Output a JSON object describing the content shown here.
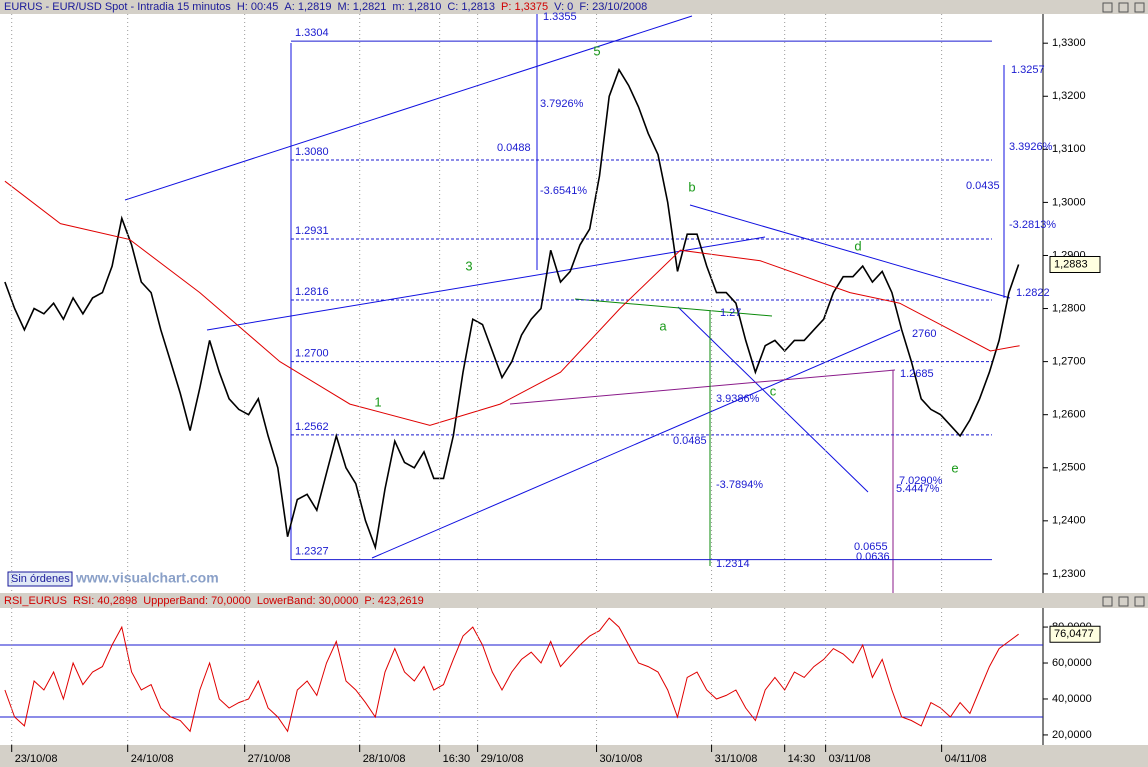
{
  "chart_data": [
    {
      "type": "line",
      "header": [
        "EURUS - EUR/USD Spot - Intradia 15 minutos",
        "H: 00:45",
        "A: 1,2819",
        "M: 1,2821",
        "m: 1,2810",
        "C: 1,2813",
        "P: 1,3375",
        "V: 0",
        "F: 23/10/2008"
      ],
      "x": [
        0,
        1,
        2,
        3,
        4,
        5,
        6,
        7,
        8,
        9,
        10,
        11,
        12,
        13,
        14,
        15,
        16,
        17,
        18,
        19,
        20,
        21,
        22,
        23,
        24,
        25,
        26,
        27,
        28,
        29,
        30,
        31,
        32,
        33,
        34,
        35,
        36,
        37,
        38,
        39,
        40,
        41,
        42,
        43,
        44,
        45,
        46,
        47,
        48,
        49,
        50,
        51,
        52,
        53,
        54,
        55,
        56,
        57,
        58,
        59,
        60,
        61,
        62,
        63,
        64,
        65,
        66,
        67,
        68,
        69,
        70,
        71,
        72,
        73,
        74,
        75,
        76,
        77,
        78,
        79,
        80,
        81,
        82,
        83,
        84,
        85,
        86,
        87,
        88,
        89,
        90,
        91,
        92,
        93,
        94,
        95,
        96,
        97,
        98,
        99,
        100,
        101,
        102,
        103,
        104
      ],
      "series": [
        {
          "color": "#000000",
          "values": [
            1.285,
            1.28,
            1.276,
            1.28,
            1.279,
            1.281,
            1.278,
            1.282,
            1.279,
            1.282,
            1.283,
            1.288,
            1.297,
            1.292,
            1.285,
            1.283,
            1.276,
            1.27,
            1.264,
            1.257,
            1.265,
            1.274,
            1.268,
            1.263,
            1.261,
            1.26,
            1.263,
            1.256,
            1.25,
            1.237,
            1.244,
            1.245,
            1.242,
            1.249,
            1.256,
            1.25,
            1.247,
            1.24,
            1.235,
            1.246,
            1.255,
            1.251,
            1.25,
            1.253,
            1.248,
            1.248,
            1.256,
            1.268,
            1.278,
            1.277,
            1.272,
            1.267,
            1.27,
            1.275,
            1.278,
            1.28,
            1.291,
            1.285,
            1.287,
            1.292,
            1.295,
            1.305,
            1.32,
            1.325,
            1.322,
            1.318,
            1.313,
            1.309,
            1.3,
            1.287,
            1.294,
            1.294,
            1.288,
            1.283,
            1.283,
            1.281,
            1.274,
            1.268,
            1.273,
            1.274,
            1.272,
            1.274,
            1.274,
            1.276,
            1.278,
            1.283,
            1.286,
            1.286,
            1.288,
            1.285,
            1.287,
            1.283,
            1.276,
            1.27,
            1.263,
            1.261,
            1.26,
            1.258,
            1.256,
            1.259,
            1.263,
            1.268,
            1.274,
            1.283,
            1.2883
          ]
        },
        {
          "color": "#e00000",
          "x": [
            0,
            5.7,
            12.8,
            20,
            28.2,
            35.4,
            43.6,
            50.8,
            57,
            63.1,
            69.3,
            77.5,
            86.7,
            91.8,
            97,
            101.1,
            104.1
          ],
          "values": [
            1.304,
            1.296,
            1.293,
            1.283,
            1.27,
            1.262,
            1.258,
            1.262,
            1.268,
            1.28,
            1.291,
            1.289,
            1.283,
            1.281,
            1.276,
            1.272,
            1.273
          ]
        }
      ],
      "xlim": [
        -0.5,
        106.5
      ],
      "xticks": [
        {
          "value": 0.7,
          "label": "23/10/08"
        },
        {
          "value": 12.6,
          "label": "24/10/08"
        },
        {
          "value": 24.6,
          "label": "27/10/08"
        },
        {
          "value": 36.4,
          "label": "28/10/08"
        },
        {
          "value": 44.6,
          "label": "16:30"
        },
        {
          "value": 48.5,
          "label": "29/10/08"
        },
        {
          "value": 60.7,
          "label": "30/10/08"
        },
        {
          "value": 72.5,
          "label": "31/10/08"
        },
        {
          "value": 80,
          "label": "14:30"
        },
        {
          "value": 84.2,
          "label": "03/11/08"
        },
        {
          "value": 96.1,
          "label": "04/11/08"
        }
      ],
      "ylim": [
        1.2264,
        1.3355
      ],
      "yticks": [
        {
          "value": 1.33,
          "label": "1,3300"
        },
        {
          "value": 1.32,
          "label": "1,3200"
        },
        {
          "value": 1.31,
          "label": "1,3100"
        },
        {
          "value": 1.3,
          "label": "1,3000"
        },
        {
          "value": 1.29,
          "label": "1,2900"
        },
        {
          "value": 1.28,
          "label": "1,2800"
        },
        {
          "value": 1.27,
          "label": "1,2700"
        },
        {
          "value": 1.26,
          "label": "1,2600"
        },
        {
          "value": 1.25,
          "label": "1,2500"
        },
        {
          "value": 1.24,
          "label": "1,2400"
        },
        {
          "value": 1.23,
          "label": "1,2300"
        }
      ],
      "fib_levels": [
        {
          "value": 1.3304,
          "label": "1.3304"
        },
        {
          "value": 1.308,
          "label": "1.3080"
        },
        {
          "value": 1.2931,
          "label": "1.2931"
        },
        {
          "value": 1.2816,
          "label": "1.2816"
        },
        {
          "value": 1.27,
          "label": "1.2700"
        },
        {
          "value": 1.2562,
          "label": "1.2562"
        },
        {
          "value": 1.2327,
          "label": "1.2327"
        }
      ],
      "annotations": [
        "1.3355",
        "3.7926%",
        "0.0488",
        "-3.6541%",
        "1.3257",
        "3.3926%",
        "0.0435",
        "-3.2813%",
        "1.2822",
        "1.27",
        "2760",
        "1.2685",
        "3.9386%",
        "0.0485",
        "-3.7894%",
        "1.2314",
        "7.0290%",
        "5.4447%",
        "0.0655",
        "0.0636"
      ],
      "wave_labels": [
        "5",
        "3",
        "1",
        "b",
        "a",
        "d",
        "c",
        "e"
      ],
      "last_value_label": "1,2883"
    },
    {
      "type": "line",
      "header": [
        "RSI_EURUS",
        "RSI: 40,2898",
        "UppperBand: 70,0000",
        "LowerBand: 30,0000",
        "P: 423,2619"
      ],
      "series": [
        {
          "color": "#e00000",
          "values": [
            45,
            30,
            25,
            50,
            45,
            55,
            40,
            60,
            48,
            55,
            58,
            70,
            80,
            55,
            45,
            48,
            35,
            30,
            28,
            22,
            45,
            60,
            40,
            35,
            38,
            40,
            50,
            35,
            30,
            22,
            45,
            50,
            42,
            60,
            72,
            50,
            45,
            38,
            30,
            55,
            68,
            55,
            50,
            58,
            45,
            48,
            62,
            75,
            80,
            70,
            55,
            45,
            55,
            62,
            66,
            60,
            72,
            58,
            64,
            70,
            75,
            78,
            85,
            80,
            70,
            60,
            58,
            55,
            45,
            30,
            52,
            55,
            45,
            40,
            42,
            45,
            35,
            28,
            45,
            52,
            45,
            55,
            52,
            58,
            62,
            68,
            65,
            60,
            70,
            52,
            62,
            45,
            30,
            28,
            25,
            38,
            35,
            30,
            38,
            32,
            45,
            58,
            68,
            72,
            76
          ]
        }
      ],
      "xlim": [
        -0.5,
        106.5
      ],
      "ylim": [
        14.4,
        90.6
      ],
      "yticks": [
        {
          "value": 80,
          "label": "80,0000"
        },
        {
          "value": 60,
          "label": "60,0000"
        },
        {
          "value": 40,
          "label": "40,0000"
        },
        {
          "value": 20,
          "label": "20,0000"
        }
      ],
      "upper_band": 70,
      "lower_band": 30,
      "last_value_label": "76,0477"
    }
  ],
  "footer": {
    "orders": "Sin órdenes",
    "site": "www.visualchart.com"
  }
}
